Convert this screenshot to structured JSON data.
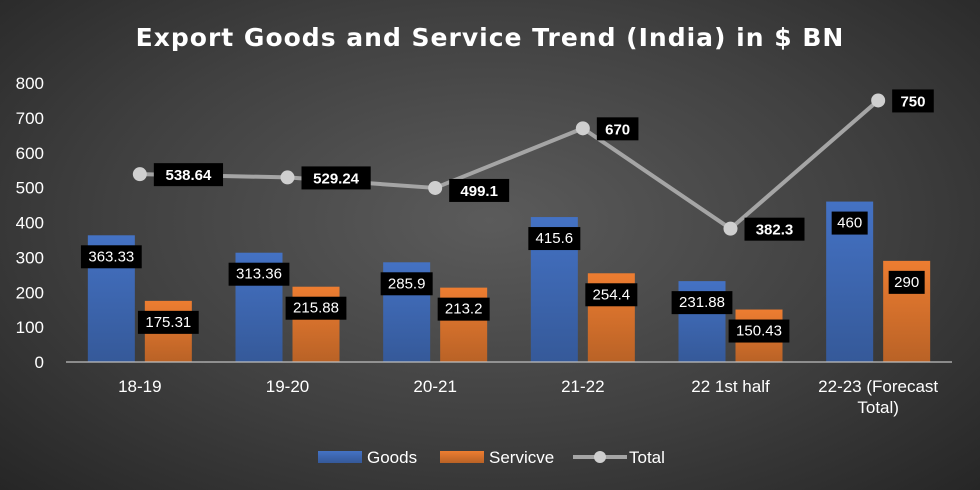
{
  "chart_data": {
    "type": "bar",
    "title": "Export Goods and Service Trend (India) in $ BN",
    "categories": [
      "18-19",
      "19-20",
      "20-21",
      "21-22",
      "22 1st half",
      "22-23 (Forecast Total)"
    ],
    "series": [
      {
        "name": "Goods",
        "type": "bar",
        "color": "#4472c4",
        "values": [
          363.33,
          313.36,
          285.9,
          415.6,
          231.88,
          460
        ]
      },
      {
        "name": "Servicve",
        "type": "bar",
        "color": "#ed7d31",
        "values": [
          175.31,
          215.88,
          213.2,
          254.4,
          150.43,
          290
        ]
      },
      {
        "name": "Total",
        "type": "line",
        "color": "#a5a5a5",
        "values": [
          538.64,
          529.24,
          499.1,
          670,
          382.3,
          750
        ]
      }
    ],
    "ylim": [
      0,
      800
    ],
    "yticks": [
      0,
      100,
      200,
      300,
      400,
      500,
      600,
      700,
      800
    ],
    "grid": false,
    "legend": "bottom"
  }
}
